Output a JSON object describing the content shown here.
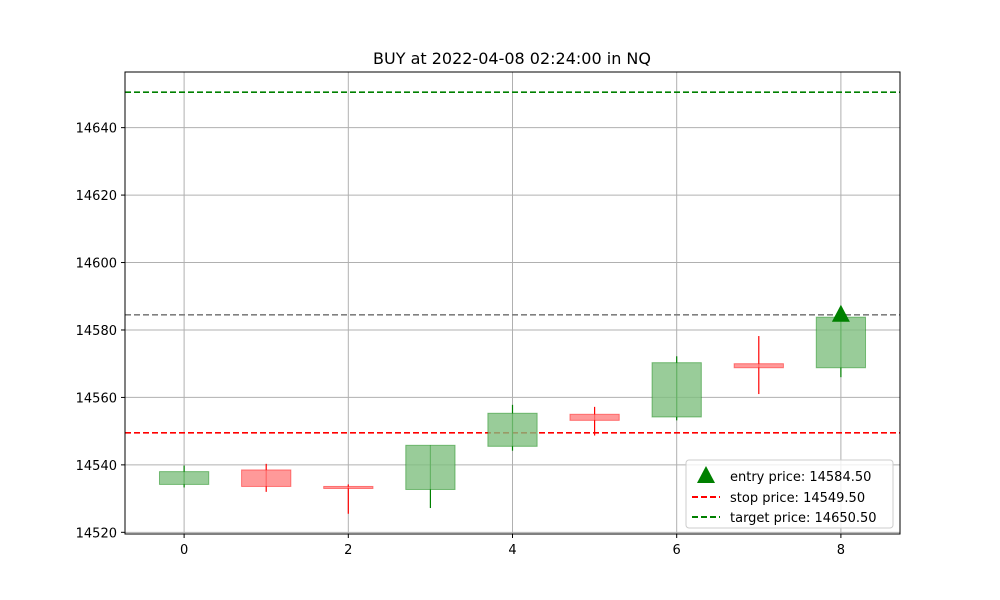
{
  "chart_data": {
    "type": "candlestick",
    "title": "BUY at 2022-04-08 02:24:00 in NQ",
    "xlabel": "",
    "ylabel": "",
    "xlim": [
      -0.72,
      8.72
    ],
    "ylim": [
      14519.5,
      14656.5
    ],
    "x_ticks": [
      0,
      2,
      4,
      6,
      8
    ],
    "y_ticks": [
      14520,
      14540,
      14560,
      14580,
      14600,
      14620,
      14640
    ],
    "grid": true,
    "legend_position": "lower-right",
    "candles": [
      {
        "x": 0,
        "open": 14534.2,
        "high": 14539.8,
        "low": 14533.3,
        "close": 14538.0,
        "direction": "up"
      },
      {
        "x": 1,
        "open": 14538.5,
        "high": 14540.3,
        "low": 14532.0,
        "close": 14533.6,
        "direction": "down"
      },
      {
        "x": 2,
        "open": 14533.6,
        "high": 14534.2,
        "low": 14525.5,
        "close": 14533.0,
        "direction": "down"
      },
      {
        "x": 3,
        "open": 14532.7,
        "high": 14545.8,
        "low": 14527.2,
        "close": 14545.8,
        "direction": "up"
      },
      {
        "x": 4,
        "open": 14545.5,
        "high": 14557.8,
        "low": 14544.2,
        "close": 14555.3,
        "direction": "up"
      },
      {
        "x": 5,
        "open": 14555.0,
        "high": 14557.2,
        "low": 14548.7,
        "close": 14553.2,
        "direction": "down"
      },
      {
        "x": 6,
        "open": 14554.2,
        "high": 14572.2,
        "low": 14553.2,
        "close": 14570.3,
        "direction": "up"
      },
      {
        "x": 7,
        "open": 14570.0,
        "high": 14578.2,
        "low": 14561.0,
        "close": 14568.8,
        "direction": "down"
      },
      {
        "x": 8,
        "open": 14568.8,
        "high": 14584.2,
        "low": 14566.0,
        "close": 14583.8,
        "direction": "up"
      }
    ],
    "entry": {
      "x": 8,
      "price": 14584.5,
      "label": "entry price: 14584.50",
      "color": "#008000",
      "marker": "triangle-up"
    },
    "stop": {
      "price": 14549.5,
      "label": "stop price: 14549.50",
      "color": "#ff0000",
      "style": "dashed"
    },
    "target": {
      "price": 14650.5,
      "label": "target price: 14650.50",
      "color": "#008000",
      "style": "dashed"
    },
    "entry_line": {
      "price": 14584.5,
      "color": "#808080",
      "style": "dashed"
    },
    "colors": {
      "up_body": "#7fbf7f",
      "up_edge": "#008000",
      "down_body": "#ff7f7f",
      "down_edge": "#ff0000",
      "grid": "#b0b0b0"
    }
  }
}
